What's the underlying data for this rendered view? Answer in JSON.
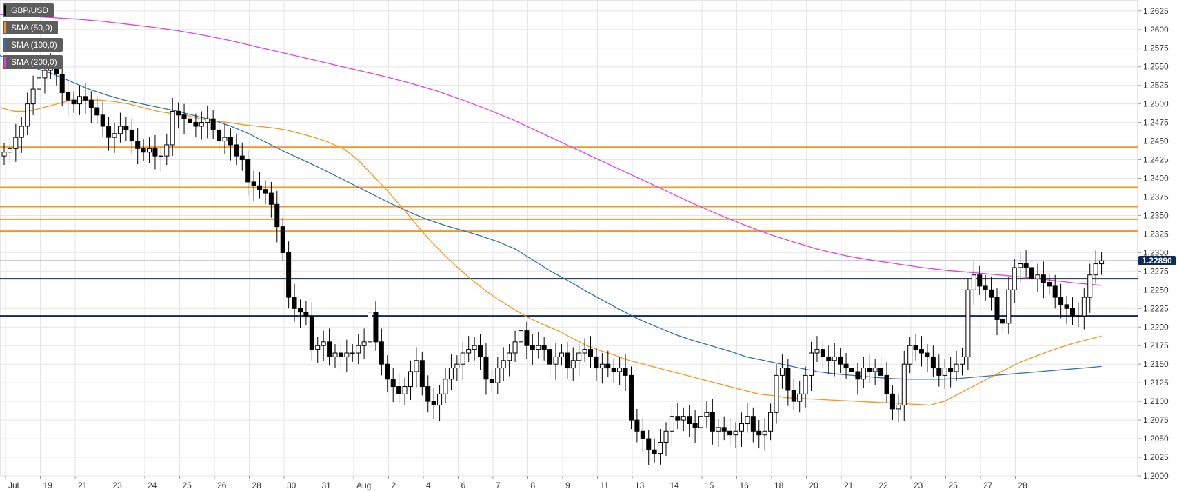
{
  "colors": {
    "background": "#ffffff",
    "grid": "#e6e6e6",
    "candle_up_fill": "#ffffff",
    "candle_down_fill": "#000000",
    "candle_outline": "#000000",
    "sma50": "#f7941d",
    "sma100": "#2e6fb5",
    "sma200": "#e040e0",
    "resistance": "#f7941d",
    "support": "#0d2a5c",
    "last_price": "#1a3f7a"
  },
  "legend": [
    {
      "label": "GBP/USD",
      "color": "#000000"
    },
    {
      "label": "SMA (50,0)",
      "color": "#f7941d"
    },
    {
      "label": "SMA (100,0)",
      "color": "#2e6fb5"
    },
    {
      "label": "SMA (200,0)",
      "color": "#e040e0"
    }
  ],
  "last_price_label": "1.22890",
  "chart_data": {
    "type": "candlestick",
    "symbol": "GBP/USD",
    "timeframe": "4H",
    "ylim": [
      1.2,
      1.2635
    ],
    "y_ticks": [
      "1.2000",
      "1.2025",
      "1.2050",
      "1.2075",
      "1.2100",
      "1.2125",
      "1.2150",
      "1.2175",
      "1.2200",
      "1.2225",
      "1.2250",
      "1.2275",
      "1.2300",
      "1.2325",
      "1.2350",
      "1.2375",
      "1.2400",
      "1.2425",
      "1.2450",
      "1.2475",
      "1.2500",
      "1.2525",
      "1.2550",
      "1.2575",
      "1.2600",
      "1.2625"
    ],
    "x_labels": [
      "Jul",
      "19",
      "21",
      "23",
      "24",
      "25",
      "26",
      "28",
      "30",
      "31",
      "Aug",
      "2",
      "4",
      "6",
      "7",
      "8",
      "9",
      "11",
      "13",
      "14",
      "15",
      "16",
      "18",
      "20",
      "21",
      "22",
      "23",
      "25",
      "27",
      "28"
    ],
    "grid": true,
    "legend_position": "top-left",
    "horizontal_levels": [
      {
        "price": 1.2442,
        "kind": "resistance"
      },
      {
        "price": 1.2388,
        "kind": "resistance"
      },
      {
        "price": 1.2362,
        "kind": "resistance"
      },
      {
        "price": 1.2345,
        "kind": "resistance"
      },
      {
        "price": 1.2329,
        "kind": "resistance"
      },
      {
        "price": 1.2265,
        "kind": "support"
      },
      {
        "price": 1.2215,
        "kind": "support"
      }
    ],
    "last_price": 1.2289,
    "closes": [
      1.2435,
      1.244,
      1.2455,
      1.247,
      1.25,
      1.252,
      1.2535,
      1.2545,
      1.255,
      1.254,
      1.2515,
      1.2505,
      1.25,
      1.251,
      1.2505,
      1.2495,
      1.2485,
      1.247,
      1.2455,
      1.246,
      1.247,
      1.2465,
      1.245,
      1.244,
      1.2435,
      1.244,
      1.243,
      1.243,
      1.2445,
      1.249,
      1.2485,
      1.248,
      1.2475,
      1.247,
      1.2475,
      1.248,
      1.2465,
      1.245,
      1.2455,
      1.2445,
      1.243,
      1.2425,
      1.2395,
      1.239,
      1.2385,
      1.238,
      1.2365,
      1.2335,
      1.23,
      1.224,
      1.2225,
      1.222,
      1.2215,
      1.217,
      1.2175,
      1.218,
      1.216,
      1.2165,
      1.216,
      1.2165,
      1.2165,
      1.2175,
      1.218,
      1.222,
      1.218,
      1.215,
      1.213,
      1.212,
      1.211,
      1.212,
      1.214,
      1.2155,
      1.212,
      1.21,
      1.2095,
      1.211,
      1.213,
      1.2145,
      1.215,
      1.2165,
      1.217,
      1.2175,
      1.216,
      1.213,
      1.2125,
      1.2145,
      1.2155,
      1.2165,
      1.218,
      1.2195,
      1.2175,
      1.217,
      1.2175,
      1.217,
      1.215,
      1.216,
      1.2165,
      1.2145,
      1.2155,
      1.2165,
      1.217,
      1.216,
      1.2145,
      1.215,
      1.2145,
      1.214,
      1.2145,
      1.2135,
      1.2075,
      1.206,
      1.205,
      1.2035,
      1.203,
      1.2045,
      1.206,
      1.208,
      1.2075,
      1.208,
      1.207,
      1.2065,
      1.208,
      1.2085,
      1.206,
      1.2065,
      1.206,
      1.2055,
      1.206,
      1.207,
      1.208,
      1.206,
      1.2055,
      1.206,
      1.2085,
      1.2135,
      1.2145,
      1.2115,
      1.21,
      1.211,
      1.2135,
      1.2165,
      1.217,
      1.216,
      1.2155,
      1.216,
      1.215,
      1.2145,
      1.214,
      1.213,
      1.2145,
      1.214,
      1.2145,
      1.2135,
      1.211,
      1.209,
      1.2095,
      1.215,
      1.2175,
      1.217,
      1.2165,
      1.216,
      1.2145,
      1.2135,
      1.2145,
      1.214,
      1.215,
      1.216,
      1.225,
      1.227,
      1.2255,
      1.225,
      1.224,
      1.221,
      1.2205,
      1.225,
      1.228,
      1.2285,
      1.228,
      1.2265,
      1.227,
      1.226,
      1.2255,
      1.224,
      1.223,
      1.2225,
      1.2215,
      1.2215,
      1.224,
      1.227,
      1.2285,
      1.2289
    ]
  },
  "sma_data": {
    "sma50": [
      1.2495,
      1.249,
      1.249,
      1.2495,
      1.25,
      1.2505,
      1.2505,
      1.2505,
      1.2503,
      1.25,
      1.2495,
      1.249,
      1.2487,
      1.2485,
      1.248,
      1.2477,
      1.2475,
      1.2472,
      1.247,
      1.2468,
      1.2465,
      1.246,
      1.2455,
      1.2448,
      1.244,
      1.2425,
      1.2405,
      1.2385,
      1.2363,
      1.234,
      1.2318,
      1.2298,
      1.228,
      1.2263,
      1.2248,
      1.2235,
      1.2223,
      1.2212,
      1.2203,
      1.2195,
      1.2185,
      1.2175,
      1.2168,
      1.2162,
      1.2155,
      1.215,
      1.2145,
      1.214,
      1.2135,
      1.213,
      1.2125,
      1.212,
      1.2115,
      1.211,
      1.2108,
      1.2105,
      1.2104,
      1.2103,
      1.2102,
      1.2101,
      1.21,
      1.2099,
      1.2098,
      1.2097,
      1.2096,
      1.2095,
      1.21,
      1.211,
      1.212,
      1.213,
      1.214,
      1.215,
      1.2158,
      1.2165,
      1.2172,
      1.2178,
      1.2183,
      1.2188
    ],
    "sma100": [
      1.2565,
      1.2555,
      1.2548,
      1.254,
      1.253,
      1.252,
      1.2512,
      1.2505,
      1.25,
      1.2495,
      1.249,
      1.2484,
      1.2478,
      1.247,
      1.246,
      1.2448,
      1.2436,
      1.2425,
      1.2414,
      1.2402,
      1.239,
      1.2378,
      1.2366,
      1.2355,
      1.2345,
      1.2337,
      1.233,
      1.2323,
      1.2315,
      1.2305,
      1.229,
      1.2275,
      1.2262,
      1.2248,
      1.2235,
      1.2222,
      1.221,
      1.22,
      1.219,
      1.2182,
      1.2175,
      1.2168,
      1.216,
      1.2155,
      1.215,
      1.2145,
      1.214,
      1.2137,
      1.2135,
      1.2133,
      1.2131,
      1.213,
      1.213,
      1.213,
      1.2131,
      1.2133,
      1.2135,
      1.2137,
      1.2139,
      1.2141,
      1.2143,
      1.2145,
      1.2147
    ],
    "sma200": [
      1.262,
      1.2618,
      1.2616,
      1.2614,
      1.2611,
      1.2607,
      1.2603,
      1.2598,
      1.2592,
      1.2585,
      1.2577,
      1.2569,
      1.2561,
      1.2553,
      1.2545,
      1.2537,
      1.2528,
      1.2518,
      1.2506,
      1.2493,
      1.2479,
      1.2463,
      1.2447,
      1.2431,
      1.2415,
      1.2399,
      1.2383,
      1.2367,
      1.2352,
      1.2338,
      1.2325,
      1.2314,
      1.2304,
      1.2296,
      1.229,
      1.2285,
      1.228,
      1.2276,
      1.2273,
      1.227,
      1.2267,
      1.2263,
      1.2259,
      1.2256
    ]
  }
}
